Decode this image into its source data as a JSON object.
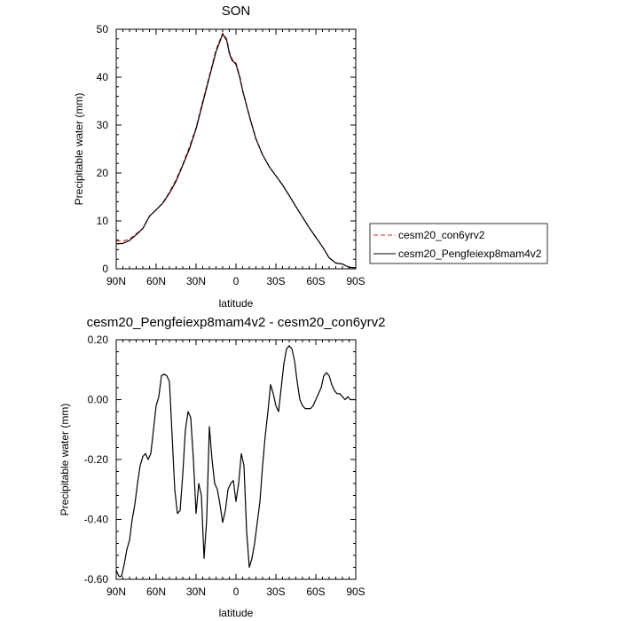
{
  "chart_data": [
    {
      "type": "line",
      "title": "SON",
      "xlabel": "latitude",
      "ylabel": "Precipitable water (mm)",
      "xlim": [
        90,
        -90
      ],
      "ylim": [
        0,
        50
      ],
      "x_ticks": [
        90,
        60,
        30,
        0,
        -30,
        -60,
        -90
      ],
      "x_tick_labels": [
        "90N",
        "60N",
        "30N",
        "0",
        "30S",
        "60S",
        "90S"
      ],
      "y_ticks": [
        0,
        10,
        20,
        30,
        40,
        50
      ],
      "y_tick_labels": [
        "0",
        "10",
        "20",
        "30",
        "40",
        "50"
      ],
      "grid": false,
      "legend": "right",
      "series": [
        {
          "name": "cesm20_con6yrv2",
          "color": "#e0201b",
          "dash": "dashed",
          "x": [
            90,
            85,
            80,
            75,
            70,
            65,
            60,
            55,
            50,
            45,
            40,
            35,
            30,
            25,
            20,
            15,
            10,
            7,
            5,
            3,
            0,
            -3,
            -5,
            -10,
            -15,
            -20,
            -25,
            -30,
            -35,
            -40,
            -45,
            -50,
            -55,
            -60,
            -65,
            -70,
            -75,
            -80,
            -85,
            -90
          ],
          "y": [
            5.8,
            5.8,
            6.2,
            7.3,
            8.4,
            11.0,
            12.3,
            13.8,
            16.0,
            18.6,
            21.8,
            25.4,
            29.4,
            35.0,
            40.3,
            45.7,
            49.2,
            48.0,
            45.3,
            43.8,
            43.0,
            40.0,
            37.3,
            32.0,
            27.2,
            23.8,
            21.3,
            19.4,
            17.5,
            15.3,
            13.0,
            10.8,
            8.6,
            6.6,
            4.6,
            2.3,
            1.2,
            1.0,
            0.3,
            0.2
          ]
        },
        {
          "name": "cesm20_Pengfeiexp8mam4v2",
          "color": "#000000",
          "dash": "solid",
          "x": [
            90,
            85,
            80,
            75,
            70,
            65,
            60,
            55,
            50,
            45,
            40,
            35,
            30,
            25,
            20,
            15,
            10,
            7,
            5,
            3,
            0,
            -3,
            -5,
            -10,
            -15,
            -20,
            -25,
            -30,
            -35,
            -40,
            -45,
            -50,
            -55,
            -60,
            -65,
            -70,
            -75,
            -80,
            -85,
            -90
          ],
          "y": [
            5.2,
            5.3,
            5.9,
            7.1,
            8.4,
            11.0,
            12.3,
            13.7,
            15.8,
            18.3,
            21.6,
            25.0,
            29.2,
            34.6,
            40.0,
            45.3,
            49.0,
            47.7,
            45.0,
            43.5,
            42.7,
            39.8,
            37.2,
            31.9,
            27.1,
            23.8,
            21.3,
            19.4,
            17.5,
            15.3,
            13.0,
            10.8,
            8.6,
            6.6,
            4.6,
            2.3,
            1.2,
            1.0,
            0.3,
            0.2
          ]
        }
      ]
    },
    {
      "type": "line",
      "title": "cesm20_Pengfeiexp8mam4v2 - cesm20_con6yrv2",
      "xlabel": "latitude",
      "ylabel": "Precipitable water (mm)",
      "xlim": [
        90,
        -90
      ],
      "ylim": [
        -0.6,
        0.2
      ],
      "x_ticks": [
        90,
        60,
        30,
        0,
        -30,
        -60,
        -90
      ],
      "x_tick_labels": [
        "90N",
        "60N",
        "30N",
        "0",
        "30S",
        "60S",
        "90S"
      ],
      "y_ticks": [
        -0.6,
        -0.4,
        -0.2,
        0.0,
        0.2
      ],
      "y_tick_labels": [
        "-0.60",
        "-0.40",
        "-0.20",
        "0.00",
        "0.20"
      ],
      "grid": false,
      "series": [
        {
          "color": "#000000",
          "x": [
            90,
            88,
            86,
            84,
            82,
            80,
            78,
            76,
            74,
            72,
            70,
            68,
            66,
            64,
            62,
            60,
            58,
            56,
            54,
            52,
            50,
            48,
            46,
            44,
            42,
            40,
            38,
            36,
            34,
            32,
            30,
            28,
            26,
            24,
            22,
            20,
            18,
            16,
            14,
            12,
            10,
            8,
            6,
            4,
            2,
            0,
            -2,
            -4,
            -6,
            -8,
            -10,
            -12,
            -14,
            -16,
            -18,
            -20,
            -22,
            -24,
            -26,
            -28,
            -30,
            -32,
            -34,
            -36,
            -38,
            -40,
            -42,
            -44,
            -46,
            -48,
            -50,
            -52,
            -54,
            -56,
            -58,
            -60,
            -62,
            -64,
            -66,
            -68,
            -70,
            -72,
            -74,
            -76,
            -78,
            -80,
            -82,
            -84,
            -86,
            -88,
            -90
          ],
          "y": [
            -0.57,
            -0.59,
            -0.59,
            -0.55,
            -0.5,
            -0.47,
            -0.4,
            -0.35,
            -0.28,
            -0.22,
            -0.19,
            -0.18,
            -0.2,
            -0.18,
            -0.1,
            -0.02,
            0.01,
            0.08,
            0.085,
            0.08,
            0.06,
            -0.12,
            -0.3,
            -0.38,
            -0.37,
            -0.25,
            -0.1,
            -0.04,
            -0.06,
            -0.2,
            -0.38,
            -0.28,
            -0.32,
            -0.53,
            -0.4,
            -0.09,
            -0.2,
            -0.28,
            -0.3,
            -0.35,
            -0.41,
            -0.37,
            -0.3,
            -0.28,
            -0.27,
            -0.34,
            -0.28,
            -0.18,
            -0.22,
            -0.44,
            -0.56,
            -0.53,
            -0.48,
            -0.41,
            -0.34,
            -0.22,
            -0.12,
            -0.04,
            0.05,
            0.02,
            -0.02,
            -0.04,
            0.04,
            0.12,
            0.17,
            0.18,
            0.17,
            0.13,
            0.06,
            0.0,
            -0.02,
            -0.03,
            -0.03,
            -0.03,
            -0.02,
            0.0,
            0.02,
            0.04,
            0.08,
            0.09,
            0.08,
            0.05,
            0.03,
            0.02,
            0.02,
            0.01,
            0.0,
            0.01,
            0.0,
            0.0,
            0.0
          ]
        }
      ]
    }
  ]
}
